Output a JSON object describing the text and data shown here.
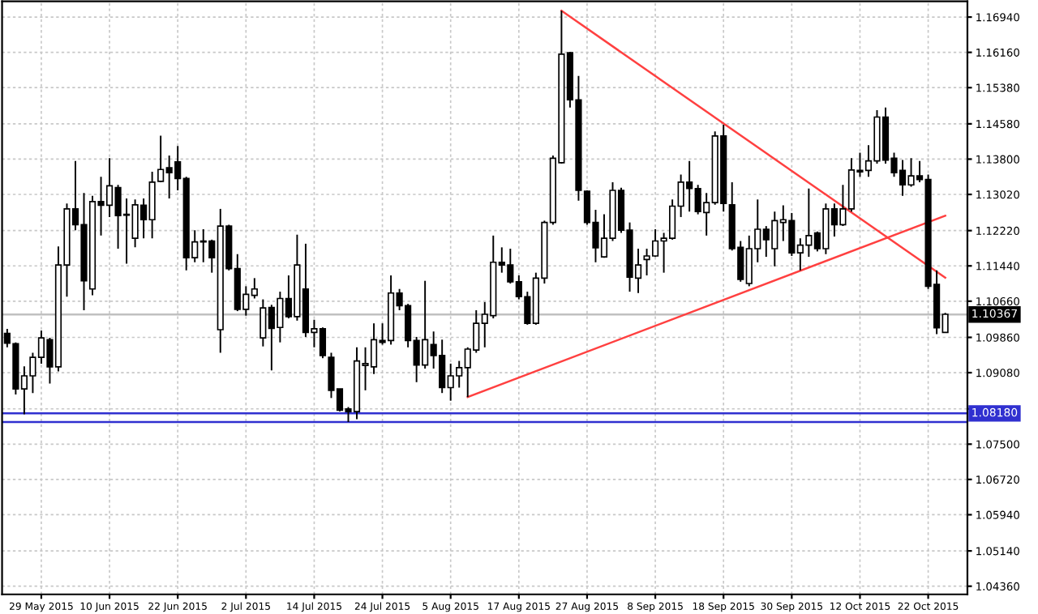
{
  "chart_data": {
    "type": "candlestick",
    "categories": [
      null,
      null,
      null,
      null,
      "29 May 2015",
      null,
      null,
      null,
      null,
      null,
      null,
      null,
      "10 Jun 2015",
      null,
      null,
      null,
      null,
      null,
      null,
      null,
      "22 Jun 2015",
      null,
      null,
      null,
      null,
      null,
      null,
      null,
      "2 Jul 2015",
      null,
      null,
      null,
      null,
      null,
      null,
      null,
      "14 Jul 2015",
      null,
      null,
      null,
      null,
      null,
      null,
      null,
      "24 Jul 2015",
      null,
      null,
      null,
      null,
      null,
      null,
      null,
      "5 Aug 2015",
      null,
      null,
      null,
      null,
      null,
      null,
      null,
      "17 Aug 2015",
      null,
      null,
      null,
      null,
      null,
      null,
      null,
      "27 Aug 2015",
      null,
      null,
      null,
      null,
      null,
      null,
      null,
      "8 Sep 2015",
      null,
      null,
      null,
      null,
      null,
      null,
      null,
      "18 Sep 2015",
      null,
      null,
      null,
      null,
      null,
      null,
      null,
      "30 Sep 2015",
      null,
      null,
      null,
      null,
      null,
      null,
      null,
      "12 Oct 2015",
      null,
      null,
      null,
      null,
      null,
      null,
      null,
      "22 Oct 2015",
      null,
      null
    ],
    "ohlc": [
      [
        1.0995,
        1.1005,
        1.0964,
        1.0973
      ],
      [
        1.0972,
        1.0975,
        1.086,
        1.0872
      ],
      [
        1.0872,
        1.0922,
        1.0816,
        1.0901
      ],
      [
        1.0901,
        1.0952,
        1.0863,
        1.0942
      ],
      [
        1.0942,
        1.1001,
        1.0928,
        1.0985
      ],
      [
        1.0981,
        1.0985,
        1.0884,
        1.0921
      ],
      [
        1.0921,
        1.1187,
        1.0911,
        1.1146
      ],
      [
        1.1146,
        1.1282,
        1.1076,
        1.127
      ],
      [
        1.127,
        1.1376,
        1.1223,
        1.1235
      ],
      [
        1.1235,
        1.1305,
        1.1046,
        1.1111
      ],
      [
        1.1093,
        1.1299,
        1.1079,
        1.1286
      ],
      [
        1.1286,
        1.1341,
        1.1211,
        1.1278
      ],
      [
        1.1278,
        1.1382,
        1.1252,
        1.1321
      ],
      [
        1.1317,
        1.1323,
        1.1182,
        1.1255
      ],
      [
        1.1258,
        1.1293,
        1.1149,
        1.1256
      ],
      [
        1.1205,
        1.1291,
        1.1185,
        1.1279
      ],
      [
        1.1278,
        1.1293,
        1.1205,
        1.1246
      ],
      [
        1.1246,
        1.1352,
        1.1205,
        1.1329
      ],
      [
        1.1331,
        1.1432,
        1.1329,
        1.1357
      ],
      [
        1.1361,
        1.1388,
        1.1293,
        1.135
      ],
      [
        1.1374,
        1.1409,
        1.1311,
        1.1337
      ],
      [
        1.1337,
        1.1341,
        1.1134,
        1.1162
      ],
      [
        1.1162,
        1.1223,
        1.1152,
        1.1197
      ],
      [
        1.1197,
        1.1225,
        1.1152,
        1.1199
      ],
      [
        1.1199,
        1.1202,
        1.1129,
        1.1162
      ],
      [
        1.1003,
        1.127,
        1.0952,
        1.1232
      ],
      [
        1.1232,
        1.1235,
        1.1134,
        1.1138
      ],
      [
        1.1138,
        1.117,
        1.1044,
        1.1048
      ],
      [
        1.1048,
        1.1099,
        1.1034,
        1.1081
      ],
      [
        1.1079,
        1.1117,
        1.1072,
        1.1093
      ],
      [
        1.0985,
        1.107,
        1.0966,
        1.1051
      ],
      [
        1.1052,
        1.1058,
        1.0913,
        1.1006
      ],
      [
        1.1008,
        1.1087,
        1.0975,
        1.1072
      ],
      [
        1.1072,
        1.1123,
        1.1028,
        1.1032
      ],
      [
        1.1032,
        1.1213,
        1.1023,
        1.1146
      ],
      [
        1.1093,
        1.1193,
        1.0987,
        1.0997
      ],
      [
        1.0997,
        1.1025,
        1.0964,
        1.1005
      ],
      [
        1.1005,
        1.1008,
        1.094,
        1.0946
      ],
      [
        1.0942,
        1.0952,
        1.0852,
        1.0869
      ],
      [
        1.0872,
        1.0872,
        1.0822,
        1.0825
      ],
      [
        1.0828,
        1.0832,
        1.0799,
        1.0822
      ],
      [
        1.0822,
        1.0964,
        1.0805,
        1.0934
      ],
      [
        1.0924,
        1.0964,
        1.0869,
        1.0928
      ],
      [
        1.0921,
        1.1017,
        1.0905,
        1.0981
      ],
      [
        1.0979,
        1.1017,
        1.097,
        1.0975
      ],
      [
        1.0979,
        1.1123,
        1.097,
        1.1084
      ],
      [
        1.1084,
        1.1093,
        1.1046,
        1.1056
      ],
      [
        1.1056,
        1.106,
        1.0964,
        1.0979
      ],
      [
        1.0979,
        1.0987,
        1.0887,
        1.0925
      ],
      [
        1.0925,
        1.1111,
        1.0917,
        1.0981
      ],
      [
        1.097,
        1.0999,
        1.0917,
        1.0946
      ],
      [
        1.0946,
        1.0981,
        1.0863,
        1.0875
      ],
      [
        1.0875,
        1.0928,
        1.0846,
        1.0901
      ],
      [
        1.0901,
        1.0934,
        1.0875,
        1.0919
      ],
      [
        1.0919,
        1.0964,
        1.0854,
        1.096
      ],
      [
        1.0958,
        1.1046,
        1.0952,
        1.1017
      ],
      [
        1.1017,
        1.1064,
        1.0964,
        1.1037
      ],
      [
        1.1034,
        1.1211,
        1.1028,
        1.1152
      ],
      [
        1.1152,
        1.1185,
        1.1129,
        1.1146
      ],
      [
        1.1146,
        1.1182,
        1.1105,
        1.1109
      ],
      [
        1.1109,
        1.1123,
        1.107,
        1.1076
      ],
      [
        1.1076,
        1.1087,
        1.1014,
        1.1017
      ],
      [
        1.1017,
        1.1129,
        1.1014,
        1.1117
      ],
      [
        1.1117,
        1.1244,
        1.1105,
        1.124
      ],
      [
        1.124,
        1.1388,
        1.1235,
        1.1382
      ],
      [
        1.1372,
        1.1708,
        1.137,
        1.1612
      ],
      [
        1.1615,
        1.1617,
        1.1494,
        1.1511
      ],
      [
        1.1511,
        1.1564,
        1.1288,
        1.1311
      ],
      [
        1.1309,
        1.1311,
        1.1235,
        1.124
      ],
      [
        1.124,
        1.1268,
        1.1152,
        1.1184
      ],
      [
        1.1164,
        1.1258,
        1.1162,
        1.1205
      ],
      [
        1.1205,
        1.1329,
        1.1199,
        1.1311
      ],
      [
        1.1311,
        1.1317,
        1.1217,
        1.1223
      ],
      [
        1.1223,
        1.124,
        1.1087,
        1.1119
      ],
      [
        1.1117,
        1.1182,
        1.1084,
        1.1146
      ],
      [
        1.1158,
        1.1182,
        1.1123,
        1.1166
      ],
      [
        1.1166,
        1.1225,
        1.1164,
        1.1199
      ],
      [
        1.1199,
        1.1217,
        1.1129,
        1.1205
      ],
      [
        1.1205,
        1.1291,
        1.1202,
        1.1276
      ],
      [
        1.1276,
        1.1346,
        1.1252,
        1.1329
      ],
      [
        1.1329,
        1.1376,
        1.1264,
        1.1315
      ],
      [
        1.1315,
        1.1323,
        1.1258,
        1.1264
      ],
      [
        1.1262,
        1.1305,
        1.1211,
        1.1284
      ],
      [
        1.1284,
        1.1441,
        1.1279,
        1.1431
      ],
      [
        1.1431,
        1.1456,
        1.1264,
        1.1282
      ],
      [
        1.1279,
        1.1329,
        1.1178,
        1.1182
      ],
      [
        1.1185,
        1.1199,
        1.1109,
        1.1114
      ],
      [
        1.1105,
        1.1211,
        1.1099,
        1.1182
      ],
      [
        1.1182,
        1.1291,
        1.1152,
        1.1225
      ],
      [
        1.1225,
        1.1232,
        1.1164,
        1.1202
      ],
      [
        1.1182,
        1.1264,
        1.1143,
        1.1244
      ],
      [
        1.124,
        1.1278,
        1.1199,
        1.1246
      ],
      [
        1.1244,
        1.1261,
        1.1166,
        1.1173
      ],
      [
        1.1173,
        1.1205,
        1.1134,
        1.119
      ],
      [
        1.119,
        1.1315,
        1.1164,
        1.1211
      ],
      [
        1.1217,
        1.122,
        1.1176,
        1.1182
      ],
      [
        1.1182,
        1.1282,
        1.117,
        1.127
      ],
      [
        1.127,
        1.1282,
        1.1209,
        1.1235
      ],
      [
        1.1235,
        1.1323,
        1.1232,
        1.127
      ],
      [
        1.127,
        1.1382,
        1.1264,
        1.1356
      ],
      [
        1.1352,
        1.1394,
        1.1341,
        1.1355
      ],
      [
        1.1355,
        1.1411,
        1.1341,
        1.1376
      ],
      [
        1.1376,
        1.1488,
        1.137,
        1.1473
      ],
      [
        1.1473,
        1.1494,
        1.137,
        1.1378
      ],
      [
        1.1382,
        1.1394,
        1.1341,
        1.135
      ],
      [
        1.1355,
        1.1378,
        1.1299,
        1.1323
      ],
      [
        1.1323,
        1.1382,
        1.1319,
        1.1343
      ],
      [
        1.1343,
        1.1376,
        1.1329,
        1.1335
      ],
      [
        1.1335,
        1.1346,
        1.1093,
        1.1099
      ],
      [
        1.1103,
        1.1134,
        1.0993,
        1.1007
      ],
      [
        1.0997,
        1.104,
        1.0996,
        1.1037
      ]
    ],
    "series": [
      {
        "type": "line",
        "values": [
          null,
          null,
          null,
          null,
          null,
          null,
          null,
          null,
          null,
          null,
          null,
          null,
          null,
          null,
          null,
          null,
          null,
          null,
          null,
          null,
          null,
          null,
          null,
          null,
          null,
          null,
          null,
          null,
          null,
          null,
          null,
          null,
          null,
          null,
          null,
          null,
          null,
          null,
          null,
          null,
          null,
          null,
          null,
          null,
          null,
          null,
          null,
          null,
          null,
          null,
          null,
          null,
          null,
          null,
          1.0854,
          null,
          null,
          null,
          null,
          null,
          null,
          null,
          null,
          null,
          null,
          null,
          null,
          null,
          null,
          null,
          null,
          null,
          null,
          null,
          null,
          null,
          null,
          null,
          null,
          null,
          null,
          null,
          null,
          null,
          null,
          null,
          null,
          null,
          null,
          null,
          null,
          null,
          null,
          null,
          null,
          null,
          null,
          null,
          null,
          null,
          null,
          null,
          null,
          null,
          null,
          null,
          null,
          null,
          null,
          null,
          1.1255
        ],
        "color": "#ff4040"
      },
      {
        "type": "line",
        "values": [
          null,
          null,
          null,
          null,
          null,
          null,
          null,
          null,
          null,
          null,
          null,
          null,
          null,
          null,
          null,
          null,
          null,
          null,
          null,
          null,
          null,
          null,
          null,
          null,
          null,
          null,
          null,
          null,
          null,
          null,
          null,
          null,
          null,
          null,
          null,
          null,
          null,
          null,
          null,
          null,
          null,
          null,
          null,
          null,
          null,
          null,
          null,
          null,
          null,
          null,
          null,
          null,
          null,
          null,
          null,
          null,
          null,
          null,
          null,
          null,
          null,
          null,
          null,
          null,
          null,
          1.1708,
          null,
          null,
          null,
          null,
          null,
          null,
          null,
          null,
          null,
          null,
          null,
          null,
          null,
          null,
          null,
          null,
          null,
          null,
          null,
          null,
          null,
          null,
          null,
          null,
          null,
          null,
          null,
          null,
          null,
          null,
          null,
          null,
          null,
          null,
          null,
          null,
          null,
          null,
          null,
          null,
          null,
          null,
          null,
          null,
          1.1118
        ],
        "color": "#ff4040"
      }
    ],
    "ref_lines": [
      {
        "axis": "y",
        "value": 1.10367,
        "label": "1.10367",
        "color": "#c0c0c0"
      },
      {
        "axis": "y",
        "value": 1.0818,
        "label": "1.08180",
        "color": "#3030d0"
      },
      {
        "axis": "y",
        "value": 1.0799,
        "label": null,
        "color": "#3030d0"
      }
    ],
    "ylim": [
      1.0418,
      1.1729
    ],
    "yticks": [
      {
        "value": 1.1694,
        "label": "1.16940"
      },
      {
        "value": 1.1616,
        "label": "1.16160"
      },
      {
        "value": 1.1538,
        "label": "1.15380"
      },
      {
        "value": 1.1458,
        "label": "1.14580"
      },
      {
        "value": 1.138,
        "label": "1.13800"
      },
      {
        "value": 1.1302,
        "label": "1.13020"
      },
      {
        "value": 1.1222,
        "label": "1.12220"
      },
      {
        "value": 1.1144,
        "label": "1.11440"
      },
      {
        "value": 1.1066,
        "label": "1.10660"
      },
      {
        "value": 1.0986,
        "label": "1.09860"
      },
      {
        "value": 1.0908,
        "label": "1.09080"
      },
      {
        "value": 1.0828,
        "label": null
      },
      {
        "value": 1.075,
        "label": "1.07500"
      },
      {
        "value": 1.0672,
        "label": "1.06720"
      },
      {
        "value": 1.0594,
        "label": "1.05940"
      },
      {
        "value": 1.0514,
        "label": "1.05140"
      },
      {
        "value": 1.0436,
        "label": "1.04360"
      }
    ],
    "grid": true
  }
}
